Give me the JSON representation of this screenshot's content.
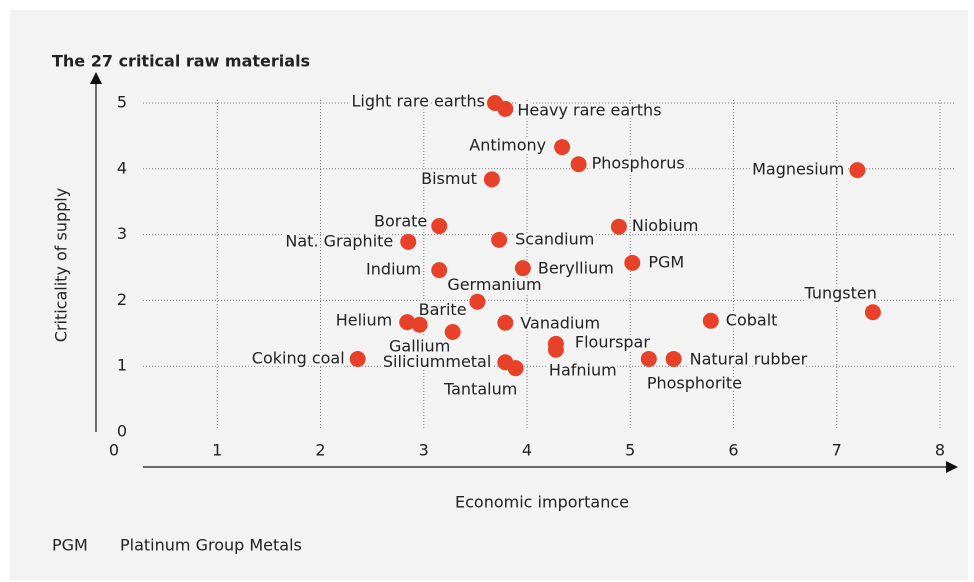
{
  "chart_data": {
    "type": "scatter",
    "title": "The 27 critical raw materials",
    "xlabel": "Economic importance",
    "ylabel": "Criticality of supply",
    "point_labels": [
      "Light rare earths",
      "Heavy rare earths",
      "Antimony",
      "Phosphorus",
      "Magnesium",
      "Bismut",
      "Borate",
      "Niobium",
      "Nat. Graphite",
      "Scandium",
      "PGM",
      "Indium",
      "Beryllium",
      "Germanium",
      "Tungsten",
      "Helium",
      "Barite",
      "Vanadium",
      "Cobalt",
      "Gallium",
      "Flourspar",
      "Hafnium",
      "Coking coal",
      "Siliciummetal",
      "Tantalum",
      "Phosphorite",
      "Natural rubber"
    ],
    "x": [
      3.69,
      3.79,
      4.34,
      4.5,
      7.2,
      3.66,
      3.15,
      4.89,
      2.85,
      3.73,
      5.02,
      3.15,
      3.96,
      3.52,
      7.35,
      2.84,
      2.96,
      3.79,
      5.78,
      3.28,
      4.28,
      4.28,
      2.36,
      3.79,
      3.89,
      5.18,
      5.42
    ],
    "values": [
      5.0,
      4.91,
      4.33,
      4.07,
      3.98,
      3.84,
      3.13,
      3.12,
      2.89,
      2.92,
      2.57,
      2.46,
      2.49,
      1.98,
      1.82,
      1.67,
      1.63,
      1.66,
      1.69,
      1.52,
      1.34,
      1.25,
      1.11,
      1.06,
      0.97,
      1.11,
      1.11
    ],
    "color": "#e8412a",
    "xlim": [
      0,
      8
    ],
    "ylim": [
      0,
      5
    ],
    "xticks": [
      0,
      1,
      2,
      3,
      4,
      5,
      6,
      7,
      8
    ],
    "yticks": [
      0,
      1,
      2,
      3,
      4,
      5
    ],
    "grid": true
  },
  "footnote": {
    "abbr": "PGM",
    "text": "Platinum Group Metals"
  }
}
